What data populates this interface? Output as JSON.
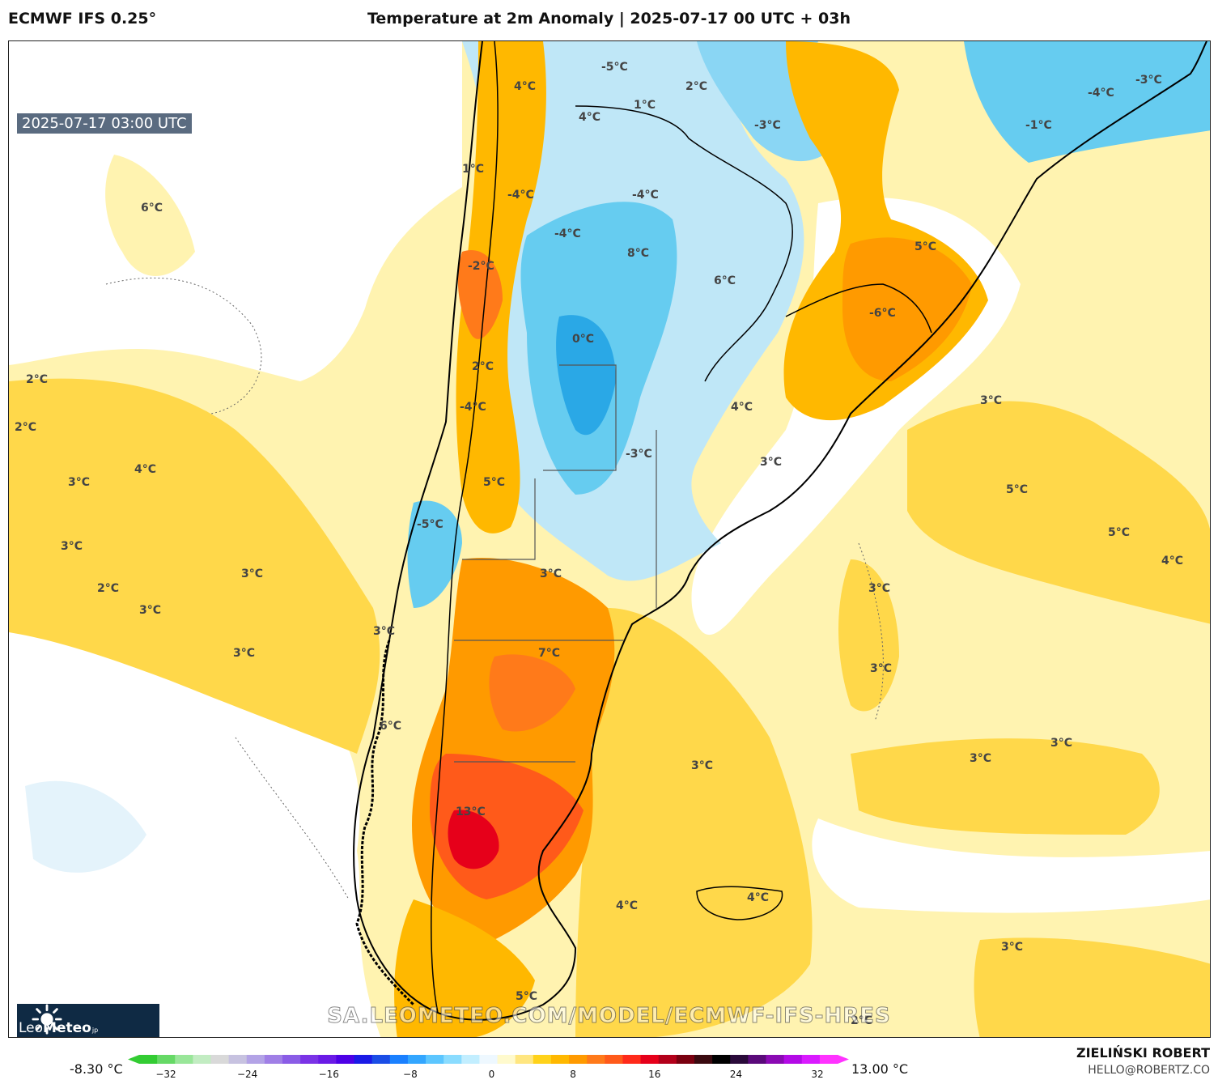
{
  "header": {
    "model": "ECMWF IFS 0.25°",
    "title": "Temperature at 2m Anomaly | 2025-07-17 00 UTC + 03h"
  },
  "map": {
    "valid_time": "2025-07-17 03:00 UTC",
    "watermark": "SA.LEOMETEO.COM/MODEL/ECMWF-IFS-HRES",
    "labels": [
      "4°C",
      "-5°C",
      "1°C",
      "2°C",
      "4°C",
      "-3°C",
      "-4°C",
      "-3°C",
      "-1°C",
      "1°C",
      "6°C",
      "-4°C",
      "-4°C",
      "-4°C",
      "8°C",
      "5°C",
      "-2°C",
      "6°C",
      "-6°C",
      "0°C",
      "2°C",
      "2°C",
      "-4°C",
      "4°C",
      "2°C",
      "3°C",
      "3°C",
      "-3°C",
      "3°C",
      "4°C",
      "5°C",
      "5°C",
      "-5°C",
      "3°C",
      "4°C",
      "5°C",
      "3°C",
      "2°C",
      "3°C",
      "3°C",
      "3°C",
      "3°C",
      "7°C",
      "3°C",
      "3°C",
      "6°C",
      "3°C",
      "3°C",
      "3°C",
      "13°C",
      "4°C",
      "4°C",
      "3°C",
      "5°C",
      "2°C"
    ]
  },
  "logo": {
    "brand_light": "Leo",
    "brand_bold": "Meteo",
    "suffix": "jp"
  },
  "colorbar": {
    "min_label": "-8.30 °C",
    "max_label": "13.00 °C",
    "ticks": [
      "−32",
      "−24",
      "−16",
      "−8",
      "0",
      "8",
      "16",
      "24",
      "32"
    ],
    "colors": [
      "#33cc33",
      "#66d966",
      "#99e699",
      "#c2ecc2",
      "#d9d9d9",
      "#c7c2e0",
      "#b3a3e6",
      "#a07fe6",
      "#8a5ce6",
      "#7a33e6",
      "#6a1ae6",
      "#4d00e6",
      "#1a1ae6",
      "#1a4de6",
      "#1a80ff",
      "#33a6ff",
      "#5cc6ff",
      "#8adcff",
      "#c2eeff",
      "#eef8ff",
      "#fffacd",
      "#ffe680",
      "#ffd21a",
      "#ffb800",
      "#ff9a00",
      "#ff7a1a",
      "#ff5a1a",
      "#ff2a1a",
      "#e6001a",
      "#b3001a",
      "#7a0010",
      "#3a0a10",
      "#000000",
      "#2a0a3a",
      "#5a0a7a",
      "#8a0ab3",
      "#b30ae6",
      "#d91aff",
      "#ff33ff"
    ]
  },
  "credits": {
    "author": "ZIELIŃSKI ROBERT",
    "email": "HELLO@ROBERTZ.CO"
  }
}
